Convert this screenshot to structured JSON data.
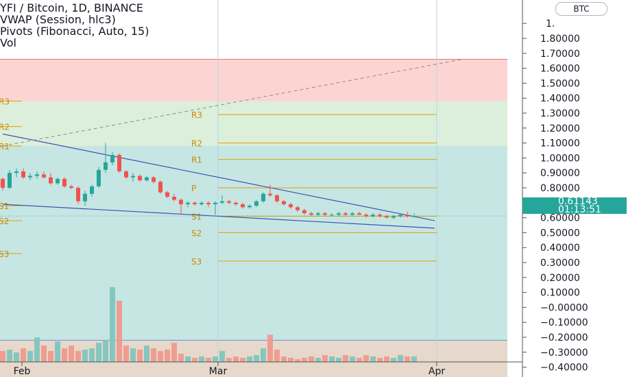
{
  "legend": {
    "title": "YFI / Bitcoin, 1D, BINANCE",
    "vwap": "VWAP (Session, hlc3)",
    "pivots": "Pivots (Fibonacci, Auto, 15)",
    "vol": "Vol"
  },
  "currency_badge": "BTC",
  "last_price": {
    "price": "0.61143",
    "countdown": "01:13:51"
  },
  "colors": {
    "up": "#26a69a",
    "down": "#ef5350",
    "trendline": "#3f51b5",
    "pivot_line": "#e0a000",
    "zone_red": "#fcd5d3",
    "zone_green": "#dcefdb",
    "zone_teal": "#c6e6e3",
    "zone_volume": "#e6d8cb"
  },
  "chart_data": {
    "type": "candlestick",
    "title": "YFI / Bitcoin, 1D, BINANCE",
    "y_axis": {
      "ticks": [
        "1.80000",
        "1.70000",
        "1.60000",
        "1.50000",
        "1.40000",
        "1.30000",
        "1.20000",
        "1.10000",
        "1.00000",
        "0.90000",
        "0.80000",
        "0.70000",
        "0.60000",
        "0.50000",
        "0.40000",
        "0.30000",
        "0.20000",
        "0.10000",
        "−0.00000",
        "−0.10000",
        "−0.20000",
        "−0.30000",
        "−0.40000"
      ],
      "range": [
        -0.47,
        1.91
      ],
      "partial_top_label": "1."
    },
    "x_axis": {
      "ticks": [
        "Feb",
        "Mar",
        "Apr"
      ]
    },
    "pivots_left": {
      "labels": [
        "R3",
        "R2",
        "R1",
        "S1",
        "S2",
        "S3"
      ],
      "values": [
        1.38,
        1.21,
        1.08,
        0.68,
        0.58,
        0.36
      ]
    },
    "pivots_right": {
      "labels": [
        "R3",
        "R2",
        "R1",
        "P",
        "S1",
        "S2",
        "S3"
      ],
      "values": [
        1.29,
        1.1,
        0.99,
        0.8,
        0.61,
        0.5,
        0.31
      ]
    },
    "zones": {
      "red": [
        1.38,
        1.66
      ],
      "green": [
        1.08,
        1.38
      ],
      "teal": [
        -0.22,
        1.08
      ],
      "volume": [
        -0.47,
        -0.22
      ]
    },
    "ohlc": [
      [
        0.86,
        0.87,
        0.78,
        0.8
      ],
      [
        0.8,
        0.92,
        0.79,
        0.9
      ],
      [
        0.9,
        0.93,
        0.87,
        0.91
      ],
      [
        0.91,
        0.93,
        0.86,
        0.87
      ],
      [
        0.87,
        0.9,
        0.85,
        0.88
      ],
      [
        0.88,
        0.91,
        0.86,
        0.89
      ],
      [
        0.89,
        0.91,
        0.86,
        0.87
      ],
      [
        0.87,
        0.9,
        0.82,
        0.83
      ],
      [
        0.83,
        0.87,
        0.82,
        0.86
      ],
      [
        0.86,
        0.87,
        0.8,
        0.81
      ],
      [
        0.81,
        0.82,
        0.79,
        0.8
      ],
      [
        0.8,
        0.81,
        0.69,
        0.71
      ],
      [
        0.71,
        0.78,
        0.68,
        0.76
      ],
      [
        0.76,
        0.82,
        0.74,
        0.81
      ],
      [
        0.81,
        0.94,
        0.8,
        0.92
      ],
      [
        0.92,
        1.1,
        0.9,
        0.97
      ],
      [
        0.97,
        1.04,
        0.95,
        1.02
      ],
      [
        1.02,
        1.03,
        0.9,
        0.91
      ],
      [
        0.91,
        0.92,
        0.86,
        0.87
      ],
      [
        0.87,
        0.9,
        0.84,
        0.88
      ],
      [
        0.88,
        0.89,
        0.84,
        0.85
      ],
      [
        0.85,
        0.88,
        0.84,
        0.87
      ],
      [
        0.87,
        0.88,
        0.83,
        0.84
      ],
      [
        0.84,
        0.85,
        0.76,
        0.77
      ],
      [
        0.77,
        0.78,
        0.73,
        0.74
      ],
      [
        0.74,
        0.76,
        0.71,
        0.72
      ],
      [
        0.72,
        0.73,
        0.62,
        0.69
      ],
      [
        0.69,
        0.71,
        0.67,
        0.7
      ],
      [
        0.7,
        0.71,
        0.68,
        0.69
      ],
      [
        0.69,
        0.71,
        0.68,
        0.7
      ],
      [
        0.7,
        0.71,
        0.67,
        0.69
      ],
      [
        0.69,
        0.71,
        0.62,
        0.7
      ],
      [
        0.7,
        0.75,
        0.69,
        0.71
      ],
      [
        0.71,
        0.72,
        0.69,
        0.7
      ],
      [
        0.7,
        0.71,
        0.68,
        0.69
      ],
      [
        0.69,
        0.7,
        0.66,
        0.67
      ],
      [
        0.67,
        0.69,
        0.66,
        0.68
      ],
      [
        0.68,
        0.72,
        0.67,
        0.71
      ],
      [
        0.71,
        0.77,
        0.7,
        0.76
      ],
      [
        0.76,
        0.82,
        0.74,
        0.75
      ],
      [
        0.75,
        0.76,
        0.7,
        0.71
      ],
      [
        0.71,
        0.72,
        0.68,
        0.69
      ],
      [
        0.69,
        0.7,
        0.66,
        0.67
      ],
      [
        0.67,
        0.68,
        0.64,
        0.65
      ],
      [
        0.65,
        0.66,
        0.62,
        0.63
      ],
      [
        0.63,
        0.64,
        0.61,
        0.62
      ],
      [
        0.62,
        0.64,
        0.61,
        0.63
      ],
      [
        0.63,
        0.64,
        0.61,
        0.62
      ],
      [
        0.62,
        0.63,
        0.61,
        0.62
      ],
      [
        0.62,
        0.64,
        0.61,
        0.63
      ],
      [
        0.63,
        0.64,
        0.61,
        0.62
      ],
      [
        0.62,
        0.64,
        0.61,
        0.63
      ],
      [
        0.63,
        0.64,
        0.62,
        0.62
      ],
      [
        0.62,
        0.63,
        0.6,
        0.61
      ],
      [
        0.61,
        0.63,
        0.6,
        0.62
      ],
      [
        0.62,
        0.63,
        0.6,
        0.61
      ],
      [
        0.61,
        0.62,
        0.6,
        0.6
      ],
      [
        0.6,
        0.62,
        0.59,
        0.61
      ],
      [
        0.61,
        0.62,
        0.6,
        0.62
      ],
      [
        0.62,
        0.64,
        0.6,
        0.61
      ],
      [
        0.61,
        0.63,
        0.6,
        0.61
      ]
    ],
    "volume_scale": [
      0,
      0.67
    ],
    "volume": [
      0.08,
      0.09,
      0.07,
      0.1,
      0.08,
      0.18,
      0.12,
      0.08,
      0.15,
      0.1,
      0.12,
      0.08,
      0.09,
      0.1,
      0.14,
      0.16,
      0.55,
      0.45,
      0.12,
      0.1,
      0.09,
      0.12,
      0.1,
      0.08,
      0.09,
      0.14,
      0.06,
      0.04,
      0.03,
      0.04,
      0.03,
      0.04,
      0.08,
      0.03,
      0.04,
      0.03,
      0.04,
      0.05,
      0.1,
      0.2,
      0.09,
      0.04,
      0.03,
      0.02,
      0.03,
      0.04,
      0.03,
      0.05,
      0.04,
      0.03,
      0.05,
      0.04,
      0.03,
      0.05,
      0.04,
      0.03,
      0.04,
      0.03,
      0.05,
      0.04,
      0.04
    ],
    "trendlines": {
      "upper": [
        [
          0,
          1.16
        ],
        [
          63,
          0.58
        ]
      ],
      "lower": [
        [
          0,
          0.69
        ],
        [
          63,
          0.53
        ]
      ],
      "dashed": [
        [
          0,
          1.08
        ],
        [
          67,
          1.66
        ]
      ]
    }
  }
}
